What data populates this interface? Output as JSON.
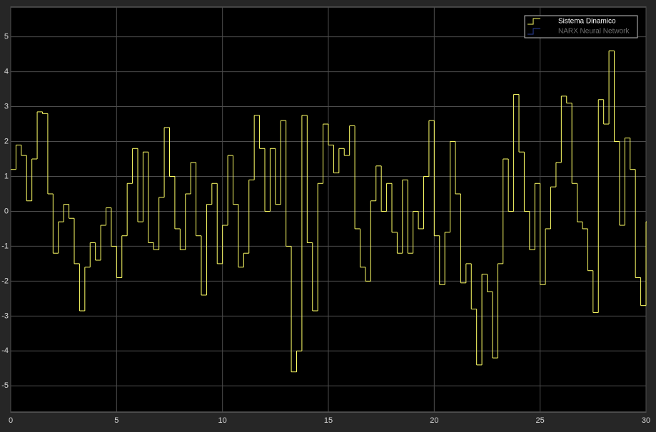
{
  "chart_data": {
    "type": "step",
    "x": [
      0,
      0.25,
      0.5,
      0.75,
      1,
      1.25,
      1.5,
      1.75,
      2,
      2.25,
      2.5,
      2.75,
      3,
      3.25,
      3.5,
      3.75,
      4,
      4.25,
      4.5,
      4.75,
      5,
      5.25,
      5.5,
      5.75,
      6,
      6.25,
      6.5,
      6.75,
      7,
      7.25,
      7.5,
      7.75,
      8,
      8.25,
      8.5,
      8.75,
      9,
      9.25,
      9.5,
      9.75,
      10,
      10.25,
      10.5,
      10.75,
      11,
      11.25,
      11.5,
      11.75,
      12,
      12.25,
      12.5,
      12.75,
      13,
      13.25,
      13.5,
      13.75,
      14,
      14.25,
      14.5,
      14.75,
      15,
      15.25,
      15.5,
      15.75,
      16,
      16.25,
      16.5,
      16.75,
      17,
      17.25,
      17.5,
      17.75,
      18,
      18.25,
      18.5,
      18.75,
      19,
      19.25,
      19.5,
      19.75,
      20,
      20.25,
      20.5,
      20.75,
      21,
      21.25,
      21.5,
      21.75,
      22,
      22.25,
      22.5,
      22.75,
      23,
      23.25,
      23.5,
      23.75,
      24,
      24.25,
      24.5,
      24.75,
      25,
      25.25,
      25.5,
      25.75,
      26,
      26.25,
      26.5,
      26.75,
      27,
      27.25,
      27.5,
      27.75,
      28,
      28.25,
      28.5,
      28.75,
      29,
      29.25,
      29.5,
      29.75,
      30
    ],
    "series": [
      {
        "name": "Sistema Dinamico",
        "color": "#ffff66",
        "values": [
          1.2,
          1.9,
          1.6,
          0.3,
          1.5,
          2.85,
          2.8,
          0.5,
          -1.2,
          -0.3,
          0.2,
          -0.2,
          -1.5,
          -2.85,
          -1.6,
          -0.9,
          -1.4,
          -0.4,
          0.1,
          -1.0,
          -1.9,
          -0.7,
          0.8,
          1.8,
          -0.3,
          1.7,
          -0.9,
          -1.1,
          0.4,
          2.4,
          1.0,
          -0.5,
          -1.1,
          0.5,
          1.4,
          -0.7,
          -2.4,
          0.2,
          0.8,
          -1.5,
          -0.4,
          1.6,
          0.2,
          -1.6,
          -1.2,
          0.9,
          2.75,
          1.8,
          0.0,
          1.8,
          0.2,
          2.6,
          -1.0,
          -4.6,
          -4.0,
          2.75,
          -0.9,
          -2.85,
          0.8,
          2.5,
          1.9,
          1.1,
          1.8,
          1.6,
          2.45,
          -0.5,
          -1.6,
          -2.0,
          0.3,
          1.3,
          0.0,
          0.8,
          -0.6,
          -1.2,
          0.9,
          -1.2,
          0.0,
          -0.5,
          1.0,
          2.6,
          -0.7,
          -2.1,
          -0.6,
          2.0,
          0.5,
          -2.05,
          -1.5,
          -2.8,
          -4.4,
          -1.8,
          -2.3,
          -4.2,
          -1.5,
          1.5,
          0.0,
          3.35,
          1.7,
          0.0,
          -1.1,
          0.8,
          -2.1,
          -0.5,
          0.7,
          1.4,
          3.3,
          3.1,
          0.8,
          -0.3,
          -0.5,
          -1.7,
          -2.9,
          3.2,
          2.5,
          4.6,
          2.0,
          -0.4,
          2.1,
          1.2,
          -1.9,
          -2.7,
          -0.3
        ]
      },
      {
        "name": "NARX Neural Network",
        "color": "#2a3f9e"
      }
    ],
    "xlim": [
      0,
      30
    ],
    "xticks": [
      0,
      5,
      10,
      15,
      20,
      25,
      30
    ],
    "ylim": [
      -5.75,
      5.85
    ],
    "yticks": [
      -5,
      -4,
      -3,
      -2,
      -1,
      0,
      1,
      2,
      3,
      4,
      5
    ],
    "grid": true,
    "legend": "top-right"
  }
}
